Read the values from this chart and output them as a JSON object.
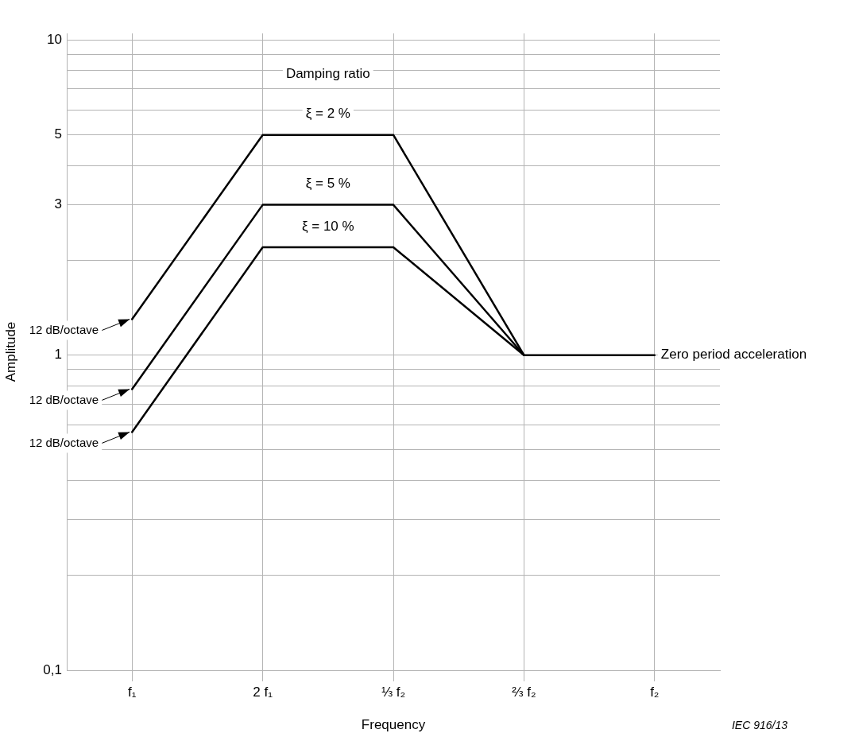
{
  "chart_data": {
    "type": "line",
    "xlabel": "Frequency",
    "ylabel": "Amplitude",
    "legend_title": "Damping ratio",
    "categories": [
      "f₁",
      "2 f₁",
      "⅓ f₂",
      "⅔ f₂",
      "f₂"
    ],
    "series": [
      {
        "name": "ξ = 2 %",
        "color": "#000000",
        "values": [
          1.3,
          5,
          5,
          1,
          null
        ]
      },
      {
        "name": "ξ = 5 %",
        "color": "#000000",
        "values": [
          0.78,
          3,
          3,
          1,
          null
        ]
      },
      {
        "name": "ξ = 10 %",
        "color": "#000000",
        "values": [
          0.57,
          2.2,
          2.2,
          1,
          null
        ]
      },
      {
        "color": "#000000",
        "values": [
          null,
          null,
          null,
          1,
          1
        ]
      }
    ],
    "log": "y",
    "ylim": [
      0.1,
      10.5
    ],
    "yticks": [
      {
        "value": 0.1,
        "label": "0,1"
      },
      {
        "value": 0.2,
        "label": null
      },
      {
        "value": 0.3,
        "label": null
      },
      {
        "value": 0.4,
        "label": null
      },
      {
        "value": 0.5,
        "label": null
      },
      {
        "value": 0.6,
        "label": null
      },
      {
        "value": 0.7,
        "label": null
      },
      {
        "value": 0.8,
        "label": null
      },
      {
        "value": 0.9,
        "label": null
      },
      1,
      {
        "value": 2,
        "label": null
      },
      3,
      {
        "value": 4,
        "label": null
      },
      5,
      {
        "value": 6,
        "label": null
      },
      {
        "value": 7,
        "label": null
      },
      {
        "value": 8,
        "label": null
      },
      {
        "value": 9,
        "label": null
      },
      10
    ],
    "grid": true,
    "legend": false,
    "marker": "none",
    "line_style": "solid",
    "annotations": [
      {
        "text": "12 dB/octave",
        "x": "f₁",
        "y": 1.3
      },
      {
        "text": "12 dB/octave",
        "x": "f₁",
        "y": 0.78
      },
      {
        "text": "12 dB/octave",
        "x": "f₁",
        "y": 0.57
      },
      {
        "text": "Zero period acceleration",
        "x": "f₂",
        "y": 1
      },
      "IEC 916/13"
    ]
  }
}
